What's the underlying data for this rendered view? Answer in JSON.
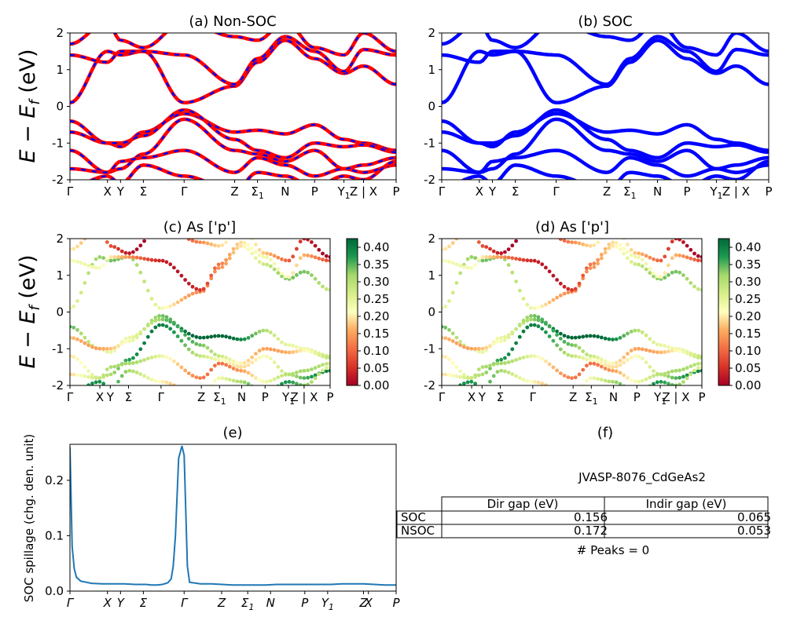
{
  "figure": {
    "panels": [
      {
        "id": "a",
        "title": "(a) Non-SOC"
      },
      {
        "id": "b",
        "title": "(b) SOC"
      },
      {
        "id": "c",
        "title": "(c)  As ['p']"
      },
      {
        "id": "d",
        "title": "(d) As ['p']"
      },
      {
        "id": "e",
        "title": "(e)"
      },
      {
        "id": "f",
        "title": "(f)"
      }
    ],
    "band_ylabel_main": "E − E",
    "band_ylabel_sub": "f",
    "band_ylabel_unit": " (eV)",
    "spillage_ylabel": "SOC spillage (chg. den. unit)",
    "kpath_labels": [
      "Γ",
      "X",
      "Y",
      "Σ",
      "Γ",
      "Z",
      "Σ1",
      "N",
      "P",
      "Y1",
      "Z | X",
      "P"
    ],
    "spillage_kpath_labels": [
      "Γ",
      "X",
      "Y",
      "Σ",
      "Γ",
      "Z",
      "Σ1",
      "N",
      "P",
      "Y1",
      "Z",
      "X",
      "P"
    ],
    "colorbar_ticks": [
      "0.00",
      "0.05",
      "0.10",
      "0.15",
      "0.20",
      "0.25",
      "0.30",
      "0.35",
      "0.40"
    ],
    "colors": {
      "nonsoc_primary": "#ff0000",
      "nonsoc_dash": "#0000ff",
      "soc": "#0000ff",
      "spillage": "#1f77b4",
      "cmap": "RdYlGn"
    }
  },
  "table": {
    "caption": "JVASP-8076_CdGeAs2",
    "headers": [
      "",
      "Dir gap (eV)",
      "Indir gap (eV)"
    ],
    "rows": [
      [
        "SOC",
        "0.156",
        "0.065"
      ],
      [
        "NSOC",
        "0.172",
        "0.053"
      ]
    ],
    "footer": "# Peaks = 0"
  },
  "chart_data": [
    {
      "type": "line",
      "panel": "a",
      "title": "(a) Non-SOC",
      "ylabel": "E − Ef (eV)",
      "ylim": [
        -2,
        2
      ],
      "yticks": [
        -2,
        -1,
        0,
        1,
        2
      ],
      "xticklabels": [
        "Γ",
        "X",
        "Y",
        "Σ",
        "Γ",
        "Z",
        "Σ1",
        "N",
        "P",
        "Y1",
        "Z | X",
        "P"
      ],
      "series": [
        {
          "name": "",
          "values": "band energies along k-path (estimated)"
        }
      ]
    },
    {
      "type": "line",
      "panel": "b",
      "title": "(b) SOC",
      "ylim": [
        -2,
        2
      ],
      "yticks": [
        -2,
        -1,
        0,
        1,
        2
      ],
      "xticklabels": [
        "Γ",
        "X",
        "Y",
        "Σ",
        "Γ",
        "Z",
        "Σ1",
        "N",
        "P",
        "Y1",
        "Z | X",
        "P"
      ]
    },
    {
      "type": "scatter",
      "panel": "c",
      "title": "(c)  As ['p']",
      "ylim": [
        -2,
        2
      ],
      "colorbar": [
        0,
        0.42
      ]
    },
    {
      "type": "scatter",
      "panel": "d",
      "title": "(d) As ['p']",
      "ylim": [
        -2,
        2
      ],
      "colorbar": [
        0,
        0.42
      ]
    },
    {
      "type": "line",
      "panel": "e",
      "title": "(e)",
      "ylabel": "SOC spillage (chg. den. unit)",
      "ylim": [
        0,
        0.265
      ],
      "yticks": [
        0.0,
        0.1,
        0.2
      ],
      "x": [
        0,
        0.01,
        0.02,
        0.04,
        0.06,
        0.1,
        0.2,
        0.3,
        0.4,
        0.5,
        0.6,
        0.7,
        0.75,
        0.8,
        0.85,
        0.9,
        0.93,
        0.95,
        0.97,
        1.0,
        1.03,
        1.05,
        1.08,
        1.1,
        1.2,
        1.3,
        1.4,
        1.5,
        1.6,
        1.7,
        1.8,
        1.9,
        2.0,
        2.1,
        2.2,
        2.3,
        2.4,
        2.5,
        2.6,
        2.7,
        2.8,
        2.9,
        3.0
      ],
      "y": [
        0.26,
        0.17,
        0.08,
        0.04,
        0.025,
        0.018,
        0.014,
        0.013,
        0.013,
        0.013,
        0.012,
        0.012,
        0.011,
        0.011,
        0.012,
        0.015,
        0.022,
        0.045,
        0.1,
        0.24,
        0.262,
        0.245,
        0.045,
        0.016,
        0.013,
        0.013,
        0.012,
        0.011,
        0.011,
        0.011,
        0.011,
        0.012,
        0.012,
        0.012,
        0.012,
        0.012,
        0.012,
        0.013,
        0.013,
        0.013,
        0.012,
        0.011,
        0.011
      ]
    }
  ]
}
